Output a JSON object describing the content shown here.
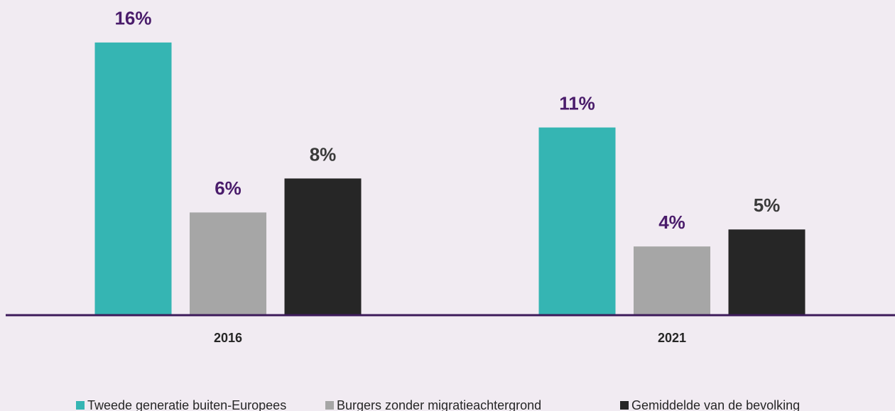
{
  "chart_data": {
    "type": "bar",
    "categories": [
      "2016",
      "2021"
    ],
    "series": [
      {
        "name": "Tweede generatie buiten-Europees",
        "color": "#35b5b3",
        "label_color": "#4a1c6b",
        "values": [
          16,
          11
        ],
        "value_labels": [
          "16%",
          "11%"
        ]
      },
      {
        "name": "Burgers zonder migratieachtergrond",
        "color": "#a6a6a6",
        "label_color": "#4a1c6b",
        "values": [
          6,
          4
        ],
        "value_labels": [
          "6%",
          "4%"
        ]
      },
      {
        "name": "Gemiddelde van de bevolking",
        "color": "#262626",
        "label_color": "#3a3a3a",
        "values": [
          8,
          5
        ],
        "value_labels": [
          "8%",
          "5%"
        ]
      }
    ],
    "ylim": [
      0,
      18.5
    ],
    "axis_color": "#3d1a5a",
    "legend": "bottom"
  }
}
